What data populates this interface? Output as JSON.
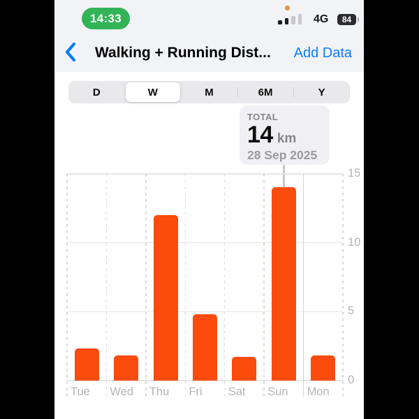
{
  "status_bar": {
    "time": "14:33",
    "network": "4G",
    "battery_percent": "84",
    "signal_level": "2 of 4 bars",
    "mic_indicator": "orange-dot",
    "time_pill_color": "#32b357"
  },
  "nav": {
    "title": "Walking + Running Dist...",
    "add_data_label": "Add Data",
    "accent_color": "#0a7cff"
  },
  "segmented_control": {
    "options": [
      "D",
      "W",
      "M",
      "6M",
      "Y"
    ],
    "selected_index": 1
  },
  "tooltip": {
    "label": "TOTAL",
    "value": "14",
    "unit": "km",
    "date": "28 Sep 2025"
  },
  "chart_data": {
    "type": "bar",
    "categories": [
      "Tue",
      "Wed",
      "Thu",
      "Fri",
      "Sat",
      "Sun",
      "Mon"
    ],
    "values": [
      2.3,
      1.8,
      12,
      4.8,
      1.7,
      14,
      1.8
    ],
    "unit": "km",
    "y_ticks": [
      0,
      5,
      10,
      15
    ],
    "ylim": [
      0,
      15
    ],
    "grid": {
      "horizontal": "solid-light",
      "vertical": "dashed-per-day"
    },
    "legend_position": "none",
    "bar_color": "#fb4b0d",
    "solid_divider_after_category": "Sun",
    "selected": {
      "category": "Sun",
      "total": "14",
      "unit": "km",
      "date": "28 Sep 2025"
    }
  }
}
